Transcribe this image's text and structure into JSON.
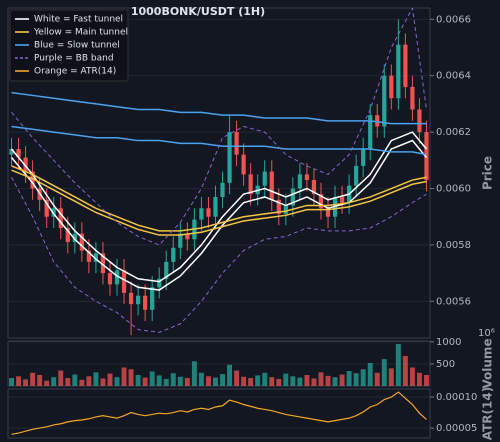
{
  "chart_data": [
    {
      "type": "candlestick",
      "title": "1000BONK/USDT (1H)",
      "ylabel": "Price",
      "ylim": [
        0.00547,
        0.00664
      ],
      "yticks": [
        0.0056,
        0.0058,
        {
          "value": 0.006,
          "label": "0.0060"
        },
        0.0062,
        0.0064,
        0.0066
      ],
      "grid": true,
      "legend": "upper left",
      "up_color": "#26a69a",
      "down_color": "#ef5350",
      "open": [
        0.00612,
        0.00614,
        0.00611,
        0.00606,
        0.006,
        0.00596,
        0.0059,
        0.00593,
        0.00586,
        0.00581,
        0.00584,
        0.00578,
        0.00574,
        0.00577,
        0.0057,
        0.00566,
        0.00571,
        0.00563,
        0.00559,
        0.00562,
        0.00557,
        0.00565,
        0.00568,
        0.00574,
        0.00579,
        0.00584,
        0.00582,
        0.00589,
        0.00593,
        0.0059,
        0.00597,
        0.00602,
        0.0062,
        0.00612,
        0.00605,
        0.00598,
        0.00601,
        0.00606,
        0.00596,
        0.00591,
        0.00594,
        0.006,
        0.00605,
        0.00603,
        0.00598,
        0.00593,
        0.0059,
        0.00597,
        0.00595,
        0.00601,
        0.00608,
        0.00614,
        0.00626,
        0.00622,
        0.0064,
        0.00632,
        0.00651,
        0.00636,
        0.00628,
        0.0062
      ],
      "high": [
        0.00618,
        0.00618,
        0.00615,
        0.0061,
        0.00604,
        0.006,
        0.00597,
        0.00597,
        0.0059,
        0.00588,
        0.00588,
        0.00582,
        0.00581,
        0.00581,
        0.00574,
        0.00575,
        0.00575,
        0.00567,
        0.00566,
        0.00566,
        0.00569,
        0.00572,
        0.00578,
        0.00583,
        0.00588,
        0.00588,
        0.00593,
        0.00597,
        0.00597,
        0.00601,
        0.00606,
        0.00626,
        0.00624,
        0.00616,
        0.00609,
        0.00605,
        0.0061,
        0.0061,
        0.006,
        0.00598,
        0.00604,
        0.00609,
        0.00609,
        0.00607,
        0.00602,
        0.00597,
        0.00601,
        0.00601,
        0.00605,
        0.00612,
        0.00618,
        0.0063,
        0.0063,
        0.00644,
        0.00644,
        0.0066,
        0.00655,
        0.0064,
        0.00632,
        0.00624
      ],
      "low": [
        0.00608,
        0.00607,
        0.00602,
        0.00596,
        0.00592,
        0.00586,
        0.00586,
        0.00582,
        0.00577,
        0.00577,
        0.00574,
        0.0057,
        0.0057,
        0.00566,
        0.00562,
        0.00562,
        0.00559,
        0.00548,
        0.00555,
        0.00553,
        0.00553,
        0.00561,
        0.00564,
        0.0057,
        0.00575,
        0.00578,
        0.00578,
        0.00585,
        0.00586,
        0.00586,
        0.00593,
        0.00598,
        0.00608,
        0.00601,
        0.00594,
        0.00594,
        0.00597,
        0.00592,
        0.00587,
        0.00587,
        0.0059,
        0.00596,
        0.00599,
        0.00594,
        0.00589,
        0.00586,
        0.00586,
        0.00591,
        0.00591,
        0.00597,
        0.00604,
        0.0061,
        0.00618,
        0.00618,
        0.00628,
        0.00628,
        0.00632,
        0.00624,
        0.00616,
        0.00599
      ],
      "close": [
        0.00614,
        0.00611,
        0.00606,
        0.006,
        0.00596,
        0.0059,
        0.00593,
        0.00586,
        0.00581,
        0.00584,
        0.00578,
        0.00574,
        0.00577,
        0.0057,
        0.00566,
        0.00571,
        0.00563,
        0.00559,
        0.00562,
        0.00557,
        0.00565,
        0.00568,
        0.00574,
        0.00579,
        0.00584,
        0.00582,
        0.00589,
        0.00593,
        0.0059,
        0.00597,
        0.00602,
        0.0062,
        0.00612,
        0.00605,
        0.00598,
        0.00601,
        0.00606,
        0.00596,
        0.00591,
        0.00594,
        0.006,
        0.00605,
        0.00603,
        0.00598,
        0.00593,
        0.0059,
        0.00597,
        0.00595,
        0.00601,
        0.00608,
        0.00614,
        0.00626,
        0.00622,
        0.0064,
        0.00632,
        0.00651,
        0.00636,
        0.00628,
        0.0062,
        0.00603
      ],
      "line_x": [
        0,
        3,
        6,
        9,
        12,
        15,
        18,
        21,
        24,
        27,
        30,
        33,
        36,
        39,
        42,
        45,
        48,
        51,
        54,
        57,
        59
      ],
      "overlays": [
        {
          "name": "White = Fast tunnel",
          "color": "#ffffff",
          "upper": [
            0.00614,
            0.00605,
            0.00594,
            0.00585,
            0.00578,
            0.00572,
            0.00568,
            0.00567,
            0.00572,
            0.0058,
            0.0059,
            0.00598,
            0.006,
            0.00597,
            0.006,
            0.00596,
            0.00598,
            0.00605,
            0.00617,
            0.0062,
            0.00614
          ],
          "lower": [
            0.00611,
            0.00602,
            0.00591,
            0.00582,
            0.00575,
            0.00569,
            0.00565,
            0.00564,
            0.00569,
            0.00577,
            0.00587,
            0.00595,
            0.00597,
            0.00594,
            0.00597,
            0.00593,
            0.00595,
            0.00602,
            0.00614,
            0.00617,
            0.00611
          ]
        },
        {
          "name": "Yellow = Main tunnel",
          "color": "#f5c542",
          "upper": [
            0.00608,
            0.00605,
            0.00601,
            0.00597,
            0.00593,
            0.0059,
            0.00587,
            0.00585,
            0.00585,
            0.00586,
            0.00588,
            0.0059,
            0.00591,
            0.00592,
            0.00594,
            0.00594,
            0.00595,
            0.00597,
            0.006,
            0.00603,
            0.00604
          ],
          "lower": [
            0.006065,
            0.006035,
            0.005995,
            0.005955,
            0.005915,
            0.005885,
            0.005855,
            0.005835,
            0.005835,
            0.005845,
            0.005865,
            0.005885,
            0.005895,
            0.005905,
            0.005925,
            0.005925,
            0.005935,
            0.005955,
            0.005985,
            0.006015,
            0.006025
          ]
        },
        {
          "name": "Blue = Slow tunnel",
          "color": "#4aa3f0",
          "upper": [
            0.00634,
            0.00633,
            0.00632,
            0.00631,
            0.0063,
            0.00629,
            0.00628,
            0.00628,
            0.00627,
            0.00627,
            0.00626,
            0.00626,
            0.00625,
            0.00625,
            0.00625,
            0.00624,
            0.00624,
            0.00624,
            0.00623,
            0.00623,
            0.00623
          ],
          "lower": [
            0.00622,
            0.00621,
            0.0062,
            0.00619,
            0.00618,
            0.00618,
            0.00617,
            0.00617,
            0.00616,
            0.00616,
            0.00615,
            0.00615,
            0.00615,
            0.00614,
            0.00614,
            0.00614,
            0.00614,
            0.00614,
            0.00613,
            0.00613,
            0.00612
          ]
        },
        {
          "name": "Purple = BB band",
          "color": "#8a63d2",
          "style": "dashed",
          "upper": [
            0.00627,
            0.00618,
            0.0061,
            0.00602,
            0.00595,
            0.00588,
            0.00583,
            0.0058,
            0.00588,
            0.006,
            0.00618,
            0.00622,
            0.0062,
            0.00612,
            0.00608,
            0.00605,
            0.00612,
            0.00628,
            0.0065,
            0.00664,
            0.00628
          ],
          "lower": [
            0.00604,
            0.0059,
            0.00574,
            0.00565,
            0.0056,
            0.00556,
            0.0055,
            0.00549,
            0.00552,
            0.0056,
            0.0057,
            0.00578,
            0.00582,
            0.00583,
            0.00586,
            0.00585,
            0.00585,
            0.00586,
            0.0059,
            0.00595,
            0.00598
          ]
        }
      ]
    },
    {
      "type": "bar",
      "ylabel": "Volume",
      "offset_label": "10⁶",
      "ylim": [
        0,
        1020
      ],
      "yticks": [
        500,
        1000
      ],
      "grid": true,
      "values": [
        180,
        220,
        150,
        300,
        250,
        120,
        200,
        350,
        180,
        260,
        140,
        220,
        310,
        170,
        280,
        200,
        420,
        380,
        250,
        190,
        330,
        240,
        160,
        290,
        210,
        180,
        560,
        300,
        220,
        190,
        270,
        480,
        350,
        210,
        180,
        240,
        300,
        200,
        160,
        280,
        220,
        190,
        250,
        170,
        310,
        230,
        200,
        260,
        340,
        290,
        380,
        520,
        300,
        610,
        400,
        950,
        680,
        420,
        300,
        250
      ]
    },
    {
      "type": "line",
      "ylabel": "ATR(14)",
      "ylim": [
        3.4e-05,
        0.000113
      ],
      "yticks": [
        {
          "value": 0.0001,
          "label": "0.00010"
        },
        5e-05
      ],
      "grid": true,
      "series": [
        {
          "name": "Orange = ATR(14)",
          "color": "#f5a623",
          "values": [
            4e-05,
            4.2e-05,
            4.5e-05,
            4.8e-05,
            5e-05,
            5.2e-05,
            5.5e-05,
            5.7e-05,
            6e-05,
            6.2e-05,
            6.3e-05,
            6.5e-05,
            6.8e-05,
            7e-05,
            6.8e-05,
            6.6e-05,
            7e-05,
            7.5e-05,
            7.2e-05,
            7e-05,
            7.2e-05,
            7.4e-05,
            7.3e-05,
            7.5e-05,
            7.8e-05,
            7.6e-05,
            8e-05,
            8.2e-05,
            8e-05,
            8.4e-05,
            8.6e-05,
            9.5e-05,
            9.2e-05,
            8.8e-05,
            8.5e-05,
            8.2e-05,
            8e-05,
            7.8e-05,
            7.5e-05,
            7.2e-05,
            7e-05,
            6.8e-05,
            6.6e-05,
            6.4e-05,
            6.2e-05,
            6e-05,
            6.2e-05,
            6.4e-05,
            6.6e-05,
            7e-05,
            7.6e-05,
            8.4e-05,
            8.8e-05,
            9.6e-05,
            0.0001,
            0.000108,
            9.8e-05,
            8.8e-05,
            7.4e-05,
            6.4e-05
          ]
        }
      ]
    }
  ]
}
